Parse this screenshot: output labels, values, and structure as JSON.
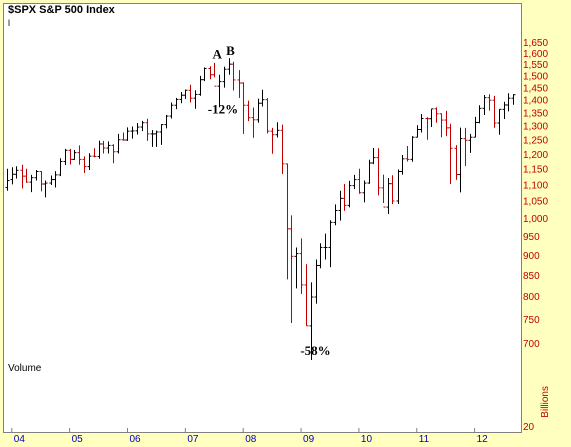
{
  "chart_data": {
    "type": "bar",
    "title": "$SPX S&P 500 Index",
    "title_marker": "l",
    "panel_label": "Volume",
    "volume_units": "Billions",
    "volume_tick": "20",
    "x_ticks": [
      "04",
      "05",
      "06",
      "07",
      "08",
      "09",
      "10",
      "11",
      "12"
    ],
    "y_ticks": [
      1650,
      1600,
      1550,
      1500,
      1450,
      1400,
      1350,
      1300,
      1250,
      1200,
      1150,
      1100,
      1050,
      1000,
      950,
      900,
      850,
      800,
      750,
      700
    ],
    "y_tick_labels": [
      "1,650",
      "1,600",
      "1,550",
      "1,500",
      "1,450",
      "1,400",
      "1,350",
      "1,300",
      "1,250",
      "1,200",
      "1,150",
      "1,100",
      "1,050",
      "1,000",
      "950",
      "900",
      "850",
      "800",
      "750",
      "700"
    ],
    "ylim": [
      640,
      1700
    ],
    "log_scale": true,
    "colors": {
      "up": "#000000",
      "down": "#C00000",
      "axis_text": "#C00000",
      "date_text": "#0000C0",
      "background": "#FFFFC0"
    },
    "annotations": [
      {
        "text": "A",
        "x": 2007.55,
        "y": 1575
      },
      {
        "text": "B",
        "x": 2007.78,
        "y": 1590
      },
      {
        "text": "-12%",
        "x": 2007.65,
        "y": 1345
      },
      {
        "text": "-58%",
        "x": 2009.25,
        "y": 676
      }
    ],
    "series": [
      {
        "values": [
          [
            2003.92,
            1090,
            1150,
            1080,
            1112
          ],
          [
            2004.0,
            1115,
            1155,
            1100,
            1132
          ],
          [
            2004.08,
            1132,
            1158,
            1118,
            1145
          ],
          [
            2004.17,
            1145,
            1163,
            1087,
            1126
          ],
          [
            2004.25,
            1126,
            1150,
            1105,
            1107
          ],
          [
            2004.33,
            1107,
            1130,
            1076,
            1121
          ],
          [
            2004.42,
            1121,
            1146,
            1112,
            1141
          ],
          [
            2004.5,
            1141,
            1142,
            1078,
            1101
          ],
          [
            2004.58,
            1101,
            1112,
            1060,
            1104
          ],
          [
            2004.67,
            1104,
            1128,
            1098,
            1115
          ],
          [
            2004.75,
            1115,
            1142,
            1090,
            1130
          ],
          [
            2004.83,
            1130,
            1185,
            1126,
            1174
          ],
          [
            2004.92,
            1174,
            1217,
            1162,
            1212
          ],
          [
            2005.0,
            1212,
            1217,
            1164,
            1181
          ],
          [
            2005.08,
            1181,
            1213,
            1180,
            1204
          ],
          [
            2005.17,
            1204,
            1229,
            1163,
            1181
          ],
          [
            2005.25,
            1181,
            1191,
            1136,
            1157
          ],
          [
            2005.33,
            1157,
            1202,
            1146,
            1192
          ],
          [
            2005.42,
            1192,
            1219,
            1188,
            1191
          ],
          [
            2005.5,
            1191,
            1246,
            1183,
            1234
          ],
          [
            2005.58,
            1234,
            1245,
            1201,
            1220
          ],
          [
            2005.67,
            1220,
            1243,
            1201,
            1229
          ],
          [
            2005.75,
            1229,
            1233,
            1168,
            1207
          ],
          [
            2005.83,
            1207,
            1270,
            1201,
            1249
          ],
          [
            2005.92,
            1249,
            1275,
            1246,
            1248
          ],
          [
            2006.0,
            1248,
            1294,
            1245,
            1280
          ],
          [
            2006.08,
            1280,
            1297,
            1253,
            1281
          ],
          [
            2006.17,
            1281,
            1310,
            1268,
            1295
          ],
          [
            2006.25,
            1295,
            1318,
            1280,
            1311
          ],
          [
            2006.33,
            1311,
            1326,
            1245,
            1270
          ],
          [
            2006.42,
            1270,
            1284,
            1224,
            1270
          ],
          [
            2006.5,
            1270,
            1282,
            1224,
            1277
          ],
          [
            2006.58,
            1277,
            1306,
            1231,
            1304
          ],
          [
            2006.67,
            1304,
            1340,
            1290,
            1336
          ],
          [
            2006.75,
            1336,
            1389,
            1327,
            1378
          ],
          [
            2006.83,
            1378,
            1407,
            1363,
            1401
          ],
          [
            2006.92,
            1401,
            1431,
            1386,
            1418
          ],
          [
            2007.0,
            1418,
            1441,
            1403,
            1438
          ],
          [
            2007.08,
            1438,
            1461,
            1389,
            1406
          ],
          [
            2007.17,
            1406,
            1438,
            1364,
            1421
          ],
          [
            2007.25,
            1421,
            1498,
            1416,
            1482
          ],
          [
            2007.33,
            1482,
            1535,
            1476,
            1530
          ],
          [
            2007.42,
            1530,
            1540,
            1484,
            1503
          ],
          [
            2007.5,
            1503,
            1555,
            1492,
            1455
          ],
          [
            2007.58,
            1455,
            1503,
            1370,
            1474
          ],
          [
            2007.67,
            1474,
            1538,
            1449,
            1527
          ],
          [
            2007.75,
            1527,
            1576,
            1503,
            1549
          ],
          [
            2007.83,
            1549,
            1560,
            1437,
            1481
          ],
          [
            2007.92,
            1481,
            1523,
            1407,
            1468
          ],
          [
            2008.0,
            1468,
            1471,
            1270,
            1378
          ],
          [
            2008.08,
            1378,
            1396,
            1317,
            1330
          ],
          [
            2008.17,
            1330,
            1369,
            1256,
            1322
          ],
          [
            2008.25,
            1322,
            1404,
            1311,
            1386
          ],
          [
            2008.33,
            1386,
            1440,
            1373,
            1400
          ],
          [
            2008.42,
            1400,
            1406,
            1272,
            1280
          ],
          [
            2008.5,
            1280,
            1292,
            1200,
            1267
          ],
          [
            2008.58,
            1267,
            1313,
            1257,
            1283
          ],
          [
            2008.67,
            1283,
            1304,
            1133,
            1166
          ],
          [
            2008.75,
            1166,
            1167,
            839,
            969
          ],
          [
            2008.83,
            969,
            1007,
            741,
            896
          ],
          [
            2008.92,
            896,
            919,
            818,
            903
          ],
          [
            2009.0,
            903,
            943,
            805,
            826
          ],
          [
            2009.08,
            826,
            876,
            735,
            735
          ],
          [
            2009.17,
            735,
            832,
            667,
            798
          ],
          [
            2009.25,
            798,
            888,
            783,
            873
          ],
          [
            2009.33,
            873,
            930,
            866,
            919
          ],
          [
            2009.42,
            919,
            956,
            888,
            919
          ],
          [
            2009.5,
            919,
            993,
            869,
            987
          ],
          [
            2009.58,
            987,
            1039,
            979,
            1021
          ],
          [
            2009.67,
            1021,
            1080,
            992,
            1057
          ],
          [
            2009.75,
            1057,
            1101,
            1020,
            1036
          ],
          [
            2009.83,
            1036,
            1111,
            1030,
            1096
          ],
          [
            2009.92,
            1096,
            1130,
            1085,
            1115
          ],
          [
            2010.0,
            1115,
            1150,
            1071,
            1074
          ],
          [
            2010.08,
            1074,
            1112,
            1045,
            1104
          ],
          [
            2010.17,
            1104,
            1180,
            1102,
            1169
          ],
          [
            2010.25,
            1169,
            1220,
            1165,
            1187
          ],
          [
            2010.33,
            1187,
            1219,
            1066,
            1089
          ],
          [
            2010.42,
            1089,
            1131,
            1043,
            1031
          ],
          [
            2010.5,
            1031,
            1120,
            1011,
            1102
          ],
          [
            2010.58,
            1102,
            1129,
            1040,
            1049
          ],
          [
            2010.67,
            1049,
            1148,
            1040,
            1141
          ],
          [
            2010.75,
            1141,
            1196,
            1131,
            1183
          ],
          [
            2010.83,
            1183,
            1227,
            1174,
            1181
          ],
          [
            2010.92,
            1181,
            1262,
            1173,
            1258
          ],
          [
            2011.0,
            1258,
            1302,
            1257,
            1286
          ],
          [
            2011.08,
            1286,
            1344,
            1275,
            1327
          ],
          [
            2011.17,
            1327,
            1332,
            1249,
            1326
          ],
          [
            2011.25,
            1326,
            1364,
            1295,
            1364
          ],
          [
            2011.33,
            1364,
            1370,
            1311,
            1345
          ],
          [
            2011.42,
            1345,
            1346,
            1258,
            1321
          ],
          [
            2011.5,
            1321,
            1356,
            1262,
            1292
          ],
          [
            2011.58,
            1292,
            1307,
            1101,
            1219
          ],
          [
            2011.67,
            1219,
            1230,
            1114,
            1131
          ],
          [
            2011.75,
            1131,
            1293,
            1075,
            1253
          ],
          [
            2011.83,
            1253,
            1292,
            1159,
            1247
          ],
          [
            2011.92,
            1247,
            1270,
            1203,
            1258
          ],
          [
            2012.0,
            1258,
            1333,
            1258,
            1312
          ],
          [
            2012.08,
            1312,
            1378,
            1309,
            1366
          ],
          [
            2012.17,
            1366,
            1419,
            1340,
            1408
          ],
          [
            2012.25,
            1408,
            1422,
            1357,
            1398
          ],
          [
            2012.33,
            1398,
            1415,
            1292,
            1310
          ],
          [
            2012.42,
            1310,
            1363,
            1267,
            1362
          ],
          [
            2012.5,
            1362,
            1392,
            1325,
            1379
          ],
          [
            2012.58,
            1379,
            1426,
            1354,
            1406
          ],
          [
            2012.67,
            1406,
            1422,
            1380,
            1420
          ]
        ]
      }
    ]
  }
}
